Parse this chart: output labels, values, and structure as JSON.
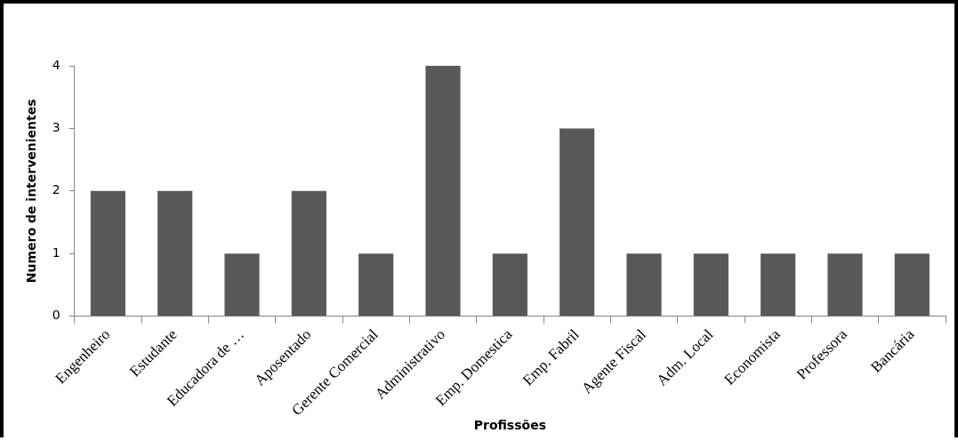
{
  "chart_data": {
    "type": "bar",
    "xlabel": "Profissões",
    "ylabel": "Numero de intervenientes",
    "categories": [
      "Engenheiro",
      "Estudante",
      "Educadora de …",
      "Aposentado",
      "Gerente Comercial",
      "Administrativo",
      "Emp. Domestica",
      "Emp. Fabril",
      "Agente Fiscal",
      "Adm. Local",
      "Economista",
      "Professora",
      "Bancária"
    ],
    "values": [
      2,
      2,
      1,
      2,
      1,
      4,
      1,
      3,
      1,
      1,
      1,
      1,
      1
    ],
    "color": "#595959",
    "ylim": [
      0,
      4
    ],
    "yticks": [
      0,
      1,
      2,
      3,
      4
    ],
    "grid": false,
    "legend": false
  }
}
